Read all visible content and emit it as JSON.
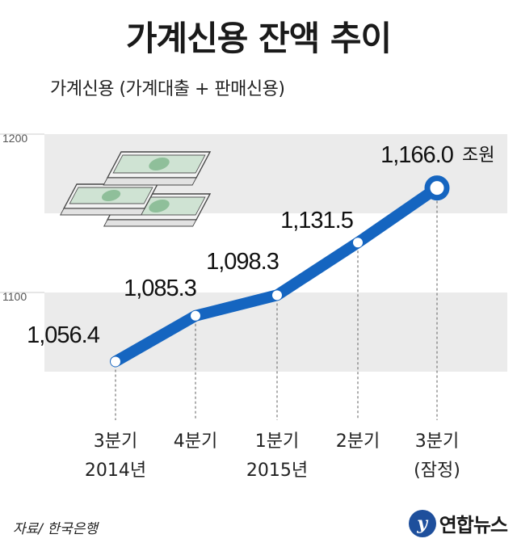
{
  "title": "가계신용 잔액 추이",
  "subtitle": "가계신용 (가계대출 + 판매신용)",
  "source": "자료/ 한국은행",
  "brand": {
    "logo_letter": "y",
    "name": "연합뉴스"
  },
  "icons": [
    "money-bundle-icon"
  ],
  "colors": {
    "line": "#1565c0",
    "band": "#ebebeb",
    "marker_fill": "#ffffff"
  },
  "chart_data": {
    "type": "line",
    "categories": [
      [
        "3분기",
        "2014년"
      ],
      [
        "4분기",
        ""
      ],
      [
        "1분기",
        "2015년"
      ],
      [
        "2분기",
        ""
      ],
      [
        "3분기",
        "(잠정)"
      ]
    ],
    "values": [
      1056.4,
      1085.3,
      1098.3,
      1131.5,
      1166.0
    ],
    "value_labels": [
      "1,056.4",
      "1,085.3",
      "1,098.3",
      "1,131.5",
      "1,166.0"
    ],
    "last_value_unit": "조원",
    "y_ticks": [
      1100,
      1200
    ],
    "ylim": [
      1050,
      1200
    ],
    "grid": "alternating horizontal bands",
    "xlabel": "",
    "ylabel": ""
  }
}
